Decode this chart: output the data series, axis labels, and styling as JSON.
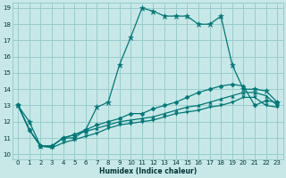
{
  "xlabel": "Humidex (Indice chaleur)",
  "bg_color": "#c8e8e8",
  "grid_color": "#98cccc",
  "line_color": "#007777",
  "xlim": [
    -0.5,
    23.5
  ],
  "ylim": [
    9.7,
    19.3
  ],
  "xticks": [
    0,
    1,
    2,
    3,
    4,
    5,
    6,
    7,
    8,
    9,
    10,
    11,
    12,
    13,
    14,
    15,
    16,
    17,
    18,
    19,
    20,
    21,
    22,
    23
  ],
  "yticks": [
    10,
    11,
    12,
    13,
    14,
    15,
    16,
    17,
    18,
    19
  ],
  "series": [
    {
      "y": [
        13,
        12,
        10.5,
        10.5,
        11,
        11,
        11.5,
        12.9,
        13.2,
        15.5,
        17.2,
        19.0,
        18.8,
        18.5,
        18.5,
        18.5,
        18.0,
        18.0,
        18.5,
        15.5,
        14.0,
        14.0,
        13.9,
        13.2
      ],
      "marker": "*",
      "markersize": 4.5,
      "linewidth": 0.9
    },
    {
      "y": [
        13,
        11.5,
        10.5,
        10.5,
        11.0,
        11.2,
        11.5,
        11.8,
        12.0,
        12.2,
        12.5,
        12.5,
        12.8,
        13.0,
        13.2,
        13.5,
        13.8,
        14.0,
        14.2,
        14.3,
        14.2,
        13.0,
        13.3,
        13.2
      ],
      "marker": "D",
      "markersize": 2.5,
      "linewidth": 0.9
    },
    {
      "y": [
        13,
        11.5,
        10.5,
        10.5,
        11.0,
        11.2,
        11.4,
        11.6,
        11.8,
        12.0,
        12.1,
        12.2,
        12.3,
        12.5,
        12.7,
        12.9,
        13.0,
        13.2,
        13.4,
        13.6,
        13.8,
        13.8,
        13.6,
        13.0
      ],
      "marker": "^",
      "markersize": 2.5,
      "linewidth": 0.9
    },
    {
      "y": [
        13,
        11.5,
        10.5,
        10.4,
        10.7,
        10.9,
        11.1,
        11.3,
        11.6,
        11.8,
        11.9,
        12.0,
        12.1,
        12.3,
        12.5,
        12.6,
        12.7,
        12.9,
        13.0,
        13.2,
        13.5,
        13.5,
        13.0,
        12.9
      ],
      "marker": "v",
      "markersize": 2.5,
      "linewidth": 0.9
    }
  ]
}
